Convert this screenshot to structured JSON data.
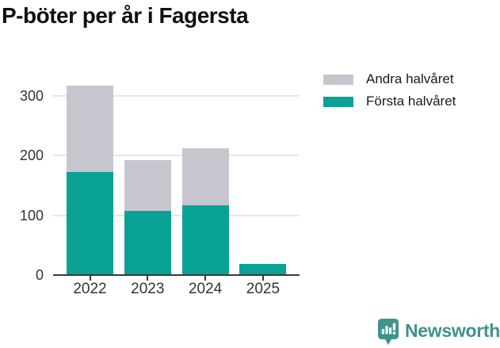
{
  "chart_data": {
    "type": "bar",
    "stacked": true,
    "title": "P-böter per år i Fagersta",
    "categories": [
      "2022",
      "2023",
      "2024",
      "2025"
    ],
    "series": [
      {
        "name": "Första halvåret",
        "color": "#0aa295",
        "values": [
          173,
          107,
          117,
          18
        ]
      },
      {
        "name": "Andra halvåret",
        "color": "#c7c6ce",
        "values": [
          145,
          85,
          95,
          0
        ]
      }
    ],
    "totals": [
      318,
      192,
      212,
      18
    ],
    "xlabel": "",
    "ylabel": "",
    "ylim": [
      0,
      320
    ],
    "yticks": [
      0,
      100,
      200,
      300
    ],
    "grid": "horizontal",
    "legend_position": "top-right",
    "legend_order": [
      "Andra halvåret",
      "Första halvåret"
    ]
  },
  "footer": {
    "brand": "Newsworthy",
    "logo_icon": "bar-chart-speech-bubble-icon"
  },
  "colors": {
    "first_half": "#0aa295",
    "second_half": "#c7c6ce",
    "brand": "#3e938e",
    "axis": "#3a3a3a",
    "gridline": "#e6e5e9",
    "text": "#1a1a1a"
  }
}
